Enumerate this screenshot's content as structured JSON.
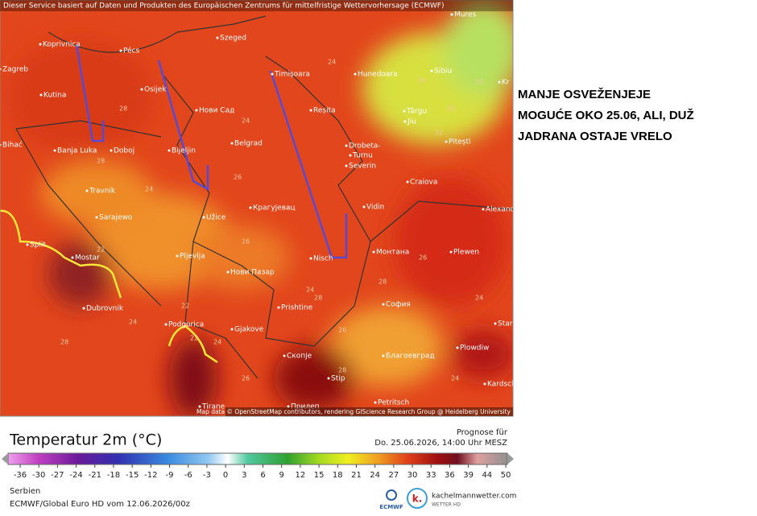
{
  "header_notice": "Dieser Service basiert auf Daten und Produkten des Europäischen Zentrums für mittelfristige Wettervorhersage (ECMWF)",
  "map": {
    "cities": [
      "Koprivnica",
      "Pécs",
      "Szeged",
      "Timișoara",
      "Hunedoara",
      "Sibiu",
      "Mures",
      "Zagreb",
      "Kutina",
      "Osijek",
      "Нови Сад",
      "Reșita",
      "Târgu",
      "Jiu",
      "Pitești",
      "Banja Luka",
      "Doboj",
      "Bijeljin",
      "Belgrad",
      "Drobeta-",
      "Turnu",
      "Severin",
      "Craiova",
      "Bihać",
      "Travnik",
      "Sarajewo",
      "Užice",
      "Крагујевац",
      "Vidin",
      "Alexand",
      "Split",
      "Mostar",
      "Pljevlja",
      "Nisch",
      "Монтана",
      "Plewen",
      "Нови Пазар",
      "Dubrovnik",
      "Prishtine",
      "София",
      "Podgorica",
      "Gjakove",
      "Скопје",
      "Благоевград",
      "Plowdiw",
      "Stara",
      "Stip",
      "Tirane",
      "Прилеп",
      "Petritsch",
      "Kardsch",
      "Kr"
    ],
    "contour_labels": [
      24,
      28,
      28,
      26,
      24,
      18,
      20,
      20,
      22,
      24,
      22,
      26,
      24,
      28,
      26,
      24,
      28,
      26,
      22,
      24,
      28,
      26,
      24,
      28,
      24,
      22
    ],
    "attribution": "Map data © OpenStreetMap contributors, rendering GIScience Research Group @ Heidelberg University"
  },
  "annotation": [
    "MANJE OSVEŽENJEJE",
    "MOGUĆE OKO 25.06, ALI, DUŽ",
    "JADRANA OSTAJE VRELO"
  ],
  "legend": {
    "title": "Temperatur 2m (°C)",
    "ticks": [
      -36,
      -30,
      -27,
      -24,
      -21,
      -18,
      -15,
      -12,
      -9,
      -6,
      -3,
      0,
      3,
      6,
      9,
      12,
      15,
      18,
      21,
      24,
      27,
      30,
      33,
      36,
      39,
      44,
      50
    ]
  },
  "forecast": {
    "label": "Prognose für",
    "time": "Do. 25.06.2026, 14:00 Uhr MESZ"
  },
  "footer": {
    "region": "Serbien",
    "model": "ECMWF/Global Euro HD vom 12.06.2026/00z",
    "ecmwf": "ECMWF",
    "site": "kachelmannwetter.com",
    "site_sub": "WETTER HD"
  }
}
